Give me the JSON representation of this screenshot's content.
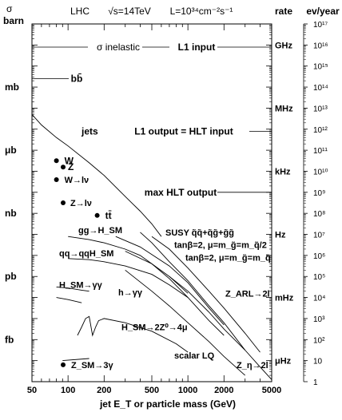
{
  "chart_data": {
    "type": "line",
    "header": {
      "left_symbol": "σ",
      "left_unit": "barn",
      "machine": "LHC",
      "energy": "√s=14TeV",
      "lumi": "L=10³⁴cm⁻²s⁻¹",
      "rate_label": "rate",
      "evyear_label": "ev/year"
    },
    "xlabel": "jet E_T or particle mass (GeV)",
    "x_ticks": [
      "50",
      "100",
      "200",
      "500",
      "1000",
      "2000",
      "5000"
    ],
    "x_tick_values": [
      50,
      100,
      200,
      500,
      1000,
      2000,
      5000
    ],
    "xlim": [
      50,
      5000
    ],
    "left_axis_units": [
      {
        "label": "barn",
        "decade": 17
      },
      {
        "label": "mb",
        "decade": 14
      },
      {
        "label": "μb",
        "decade": 11
      },
      {
        "label": "nb",
        "decade": 8
      },
      {
        "label": "pb",
        "decade": 5
      },
      {
        "label": "fb",
        "decade": 2
      }
    ],
    "rate_axis_units": [
      {
        "label": "GHz",
        "decade": 16
      },
      {
        "label": "MHz",
        "decade": 13
      },
      {
        "label": "kHz",
        "decade": 10
      },
      {
        "label": "Hz",
        "decade": 7
      },
      {
        "label": "mHz",
        "decade": 4
      },
      {
        "label": "μHz",
        "decade": 1
      }
    ],
    "evyear_ticks": [
      "1",
      "10",
      "10²",
      "10³",
      "10⁴",
      "10⁵",
      "10⁶",
      "10⁷",
      "10⁸",
      "10⁹",
      "10¹⁰",
      "10¹¹",
      "10¹²",
      "10¹³",
      "10¹⁴",
      "10¹⁵",
      "10¹⁶",
      "10¹⁷"
    ],
    "ylim_decades": [
      0,
      17
    ],
    "reference_lines": [
      {
        "label": "σ inelastic",
        "decade": 15.9
      },
      {
        "label": "L1 input",
        "decade": 15.9
      },
      {
        "label": "bb̄",
        "decade": 14.4
      },
      {
        "label": "L1 output = HLT input",
        "decade": 11.9
      },
      {
        "label": "max HLT output",
        "decade": 9.0
      }
    ],
    "curves": [
      {
        "name": "jets",
        "points": [
          [
            50,
            12.7
          ],
          [
            60,
            12.2
          ],
          [
            80,
            11.6
          ],
          [
            100,
            11.2
          ],
          [
            150,
            10.4
          ],
          [
            200,
            9.8
          ],
          [
            300,
            8.8
          ],
          [
            400,
            8.1
          ],
          [
            500,
            7.5
          ],
          [
            600,
            6.9
          ]
        ]
      },
      {
        "name": "gg→H_SM",
        "points": [
          [
            100,
            6.9
          ],
          [
            150,
            6.75
          ],
          [
            200,
            6.6
          ],
          [
            300,
            6.3
          ],
          [
            400,
            6.0
          ],
          [
            500,
            5.6
          ],
          [
            700,
            5.0
          ],
          [
            1000,
            4.2
          ]
        ]
      },
      {
        "name": "qq→qqH_SM",
        "points": [
          [
            100,
            5.85
          ],
          [
            150,
            5.8
          ],
          [
            200,
            5.7
          ],
          [
            300,
            5.5
          ],
          [
            500,
            5.1
          ],
          [
            700,
            4.6
          ],
          [
            1000,
            4.0
          ]
        ]
      },
      {
        "name": "H_SM→γγ",
        "points": [
          [
            80,
            4.5
          ],
          [
            100,
            4.45
          ],
          [
            130,
            4.35
          ],
          [
            150,
            4.3
          ]
        ]
      },
      {
        "name": "h→γγ",
        "points": [
          [
            80,
            4.0
          ],
          [
            100,
            3.9
          ],
          [
            120,
            3.8
          ],
          [
            130,
            3.75
          ]
        ]
      },
      {
        "name": "H_SM→2Z⁰→4μ",
        "points": [
          [
            120,
            2.2
          ],
          [
            130,
            2.6
          ],
          [
            140,
            3.0
          ],
          [
            150,
            3.1
          ],
          [
            160,
            2.2
          ],
          [
            170,
            2.6
          ],
          [
            180,
            2.9
          ],
          [
            200,
            3.0
          ],
          [
            300,
            2.8
          ],
          [
            500,
            2.4
          ],
          [
            800,
            1.8
          ],
          [
            1000,
            1.4
          ]
        ]
      },
      {
        "name": "SUSY q̃q̃+q̃g̃+g̃g̃",
        "points": [
          [
            400,
            7.1
          ],
          [
            500,
            6.6
          ],
          [
            700,
            5.7
          ],
          [
            1000,
            4.8
          ],
          [
            1500,
            3.6
          ],
          [
            2000,
            2.8
          ],
          [
            3000,
            1.5
          ]
        ]
      },
      {
        "name": "tanβ=2, μ=m_g̃=m_q̃/2",
        "points": [
          [
            250,
            6.9
          ],
          [
            400,
            6.4
          ],
          [
            700,
            5.5
          ],
          [
            1000,
            4.7
          ],
          [
            1500,
            3.5
          ],
          [
            2000,
            2.7
          ]
        ]
      },
      {
        "name": "tanβ=2, μ=m_g̃=m_q̃",
        "points": [
          [
            300,
            6.2
          ],
          [
            500,
            5.6
          ],
          [
            700,
            4.9
          ],
          [
            1000,
            4.0
          ],
          [
            1500,
            2.9
          ],
          [
            2000,
            2.2
          ]
        ]
      },
      {
        "name": "Z_ARL→2l",
        "points": [
          [
            500,
            6.9
          ],
          [
            700,
            6.3
          ],
          [
            1000,
            5.4
          ],
          [
            1500,
            4.3
          ],
          [
            2000,
            3.5
          ],
          [
            3000,
            2.3
          ],
          [
            4000,
            1.4
          ]
        ]
      },
      {
        "name": "Z_η→2l",
        "points": [
          [
            700,
            5.0
          ],
          [
            1000,
            4.3
          ],
          [
            1500,
            3.3
          ],
          [
            2000,
            2.5
          ],
          [
            3000,
            1.5
          ],
          [
            4000,
            0.7
          ],
          [
            5000,
            0.1
          ]
        ]
      },
      {
        "name": "scalar LQ",
        "points": [
          [
            300,
            5.3
          ],
          [
            500,
            4.3
          ],
          [
            700,
            3.6
          ],
          [
            1000,
            2.8
          ],
          [
            1500,
            1.9
          ],
          [
            2000,
            1.2
          ],
          [
            3000,
            0.3
          ]
        ]
      },
      {
        "name": "Z_SM→3γ",
        "points": [
          [
            90,
            1.0
          ],
          [
            150,
            1.1
          ]
        ]
      }
    ],
    "markers": [
      {
        "label": "W",
        "x": 80,
        "decade": 10.5
      },
      {
        "label": "Z",
        "x": 91,
        "decade": 10.2
      },
      {
        "label": "W→lν",
        "x": 80,
        "decade": 9.6
      },
      {
        "label": "Z→lν",
        "x": 91,
        "decade": 8.5
      },
      {
        "label": "tt̄",
        "x": 175,
        "decade": 7.9
      },
      {
        "label": "Z_SM→3γ",
        "x": 91,
        "decade": 0.8
      }
    ]
  }
}
